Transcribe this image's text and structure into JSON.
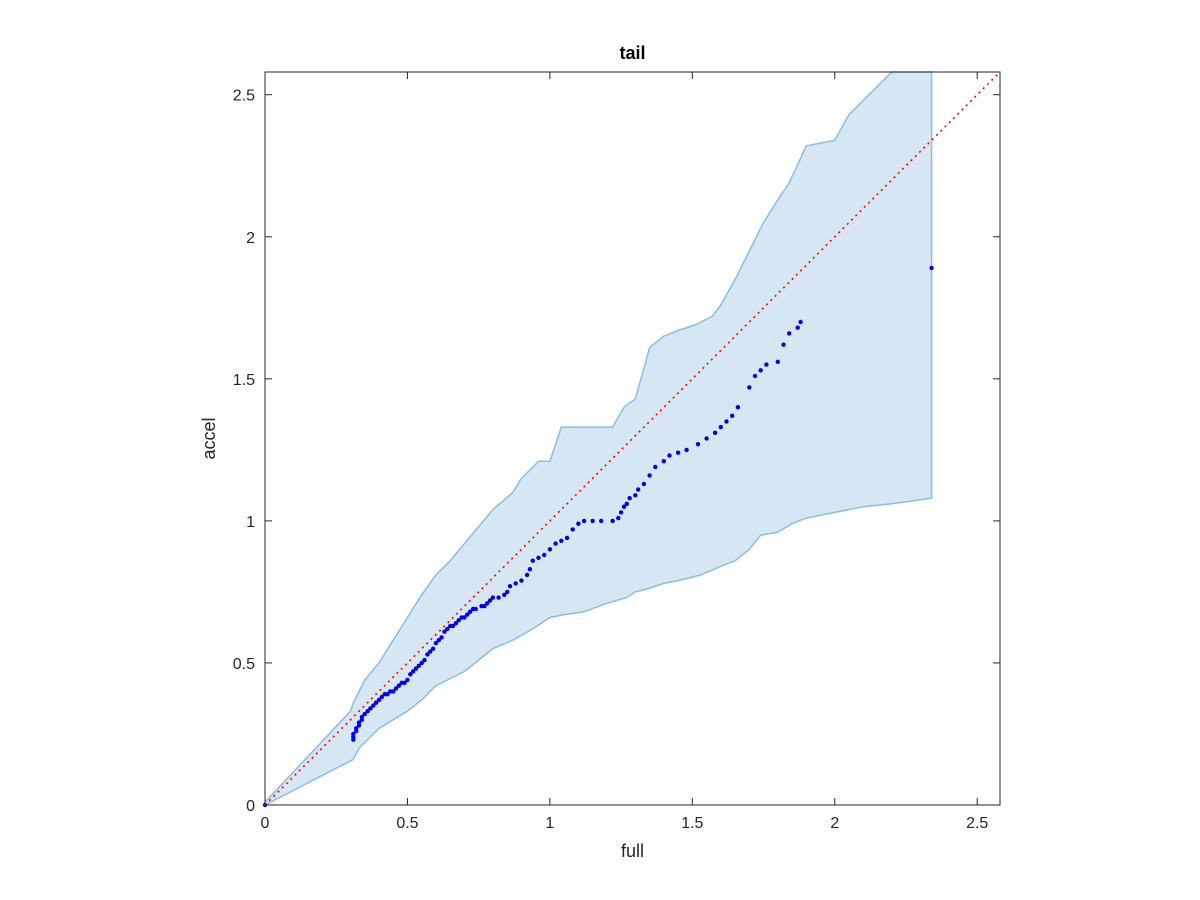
{
  "chart_data": {
    "type": "scatter",
    "title": "tail",
    "xlabel": "full",
    "ylabel": "accel",
    "xlim": [
      0,
      2.58
    ],
    "ylim": [
      0,
      2.58
    ],
    "xticks": [
      0,
      0.5,
      1,
      1.5,
      2,
      2.5
    ],
    "yticks": [
      0,
      0.5,
      1,
      1.5,
      2,
      2.5
    ],
    "xtick_labels": [
      "0",
      "0.5",
      "1",
      "1.5",
      "2",
      "2.5"
    ],
    "ytick_labels": [
      "0",
      "0.5",
      "1",
      "1.5",
      "2",
      "2.5"
    ],
    "grid": false,
    "colors": {
      "points": "#0000ee",
      "band_fill": "#d6e6f3",
      "band_edge": "#8abedf",
      "reference": "#ff0000",
      "axes": "#262626"
    },
    "band_upper": [
      [
        0,
        0.01
      ],
      [
        0.3,
        0.33
      ],
      [
        0.31,
        0.36
      ],
      [
        0.33,
        0.4
      ],
      [
        0.35,
        0.44
      ],
      [
        0.4,
        0.5
      ],
      [
        0.45,
        0.58
      ],
      [
        0.5,
        0.66
      ],
      [
        0.55,
        0.74
      ],
      [
        0.6,
        0.81
      ],
      [
        0.65,
        0.86
      ],
      [
        0.7,
        0.92
      ],
      [
        0.8,
        1.04
      ],
      [
        0.87,
        1.1
      ],
      [
        0.9,
        1.15
      ],
      [
        0.96,
        1.21
      ],
      [
        1.0,
        1.21
      ],
      [
        1.04,
        1.33
      ],
      [
        1.22,
        1.33
      ],
      [
        1.26,
        1.4
      ],
      [
        1.3,
        1.43
      ],
      [
        1.32,
        1.5
      ],
      [
        1.35,
        1.61
      ],
      [
        1.4,
        1.65
      ],
      [
        1.45,
        1.67
      ],
      [
        1.51,
        1.69
      ],
      [
        1.57,
        1.72
      ],
      [
        1.6,
        1.76
      ],
      [
        1.65,
        1.85
      ],
      [
        1.7,
        1.95
      ],
      [
        1.75,
        2.05
      ],
      [
        1.8,
        2.13
      ],
      [
        1.84,
        2.19
      ],
      [
        1.9,
        2.32
      ],
      [
        2.0,
        2.34
      ],
      [
        2.05,
        2.43
      ],
      [
        2.2,
        2.58
      ],
      [
        2.34,
        2.58
      ]
    ],
    "band_lower": [
      [
        0,
        0.0
      ],
      [
        0.31,
        0.16
      ],
      [
        0.33,
        0.2
      ],
      [
        0.35,
        0.22
      ],
      [
        0.4,
        0.27
      ],
      [
        0.5,
        0.33
      ],
      [
        0.55,
        0.37
      ],
      [
        0.6,
        0.42
      ],
      [
        0.7,
        0.47
      ],
      [
        0.8,
        0.55
      ],
      [
        0.87,
        0.58
      ],
      [
        0.94,
        0.62
      ],
      [
        1.0,
        0.66
      ],
      [
        1.05,
        0.67
      ],
      [
        1.12,
        0.68
      ],
      [
        1.2,
        0.71
      ],
      [
        1.27,
        0.73
      ],
      [
        1.3,
        0.75
      ],
      [
        1.34,
        0.76
      ],
      [
        1.4,
        0.78
      ],
      [
        1.45,
        0.79
      ],
      [
        1.53,
        0.81
      ],
      [
        1.6,
        0.84
      ],
      [
        1.65,
        0.86
      ],
      [
        1.7,
        0.9
      ],
      [
        1.74,
        0.95
      ],
      [
        1.8,
        0.96
      ],
      [
        1.85,
        0.99
      ],
      [
        1.9,
        1.01
      ],
      [
        2.0,
        1.03
      ],
      [
        2.1,
        1.05
      ],
      [
        2.2,
        1.06
      ],
      [
        2.34,
        1.08
      ]
    ],
    "points": [
      [
        0,
        0
      ],
      [
        0.31,
        0.23
      ],
      [
        0.31,
        0.24
      ],
      [
        0.31,
        0.25
      ],
      [
        0.32,
        0.26
      ],
      [
        0.32,
        0.27
      ],
      [
        0.33,
        0.28
      ],
      [
        0.33,
        0.29
      ],
      [
        0.34,
        0.3
      ],
      [
        0.34,
        0.31
      ],
      [
        0.35,
        0.32
      ],
      [
        0.36,
        0.33
      ],
      [
        0.37,
        0.34
      ],
      [
        0.38,
        0.35
      ],
      [
        0.39,
        0.36
      ],
      [
        0.4,
        0.37
      ],
      [
        0.41,
        0.38
      ],
      [
        0.42,
        0.39
      ],
      [
        0.43,
        0.39
      ],
      [
        0.44,
        0.4
      ],
      [
        0.45,
        0.4
      ],
      [
        0.46,
        0.41
      ],
      [
        0.47,
        0.42
      ],
      [
        0.48,
        0.43
      ],
      [
        0.49,
        0.43
      ],
      [
        0.5,
        0.44
      ],
      [
        0.51,
        0.46
      ],
      [
        0.52,
        0.47
      ],
      [
        0.53,
        0.48
      ],
      [
        0.54,
        0.49
      ],
      [
        0.55,
        0.5
      ],
      [
        0.56,
        0.51
      ],
      [
        0.57,
        0.53
      ],
      [
        0.58,
        0.54
      ],
      [
        0.59,
        0.55
      ],
      [
        0.6,
        0.57
      ],
      [
        0.61,
        0.58
      ],
      [
        0.62,
        0.59
      ],
      [
        0.63,
        0.61
      ],
      [
        0.64,
        0.62
      ],
      [
        0.65,
        0.63
      ],
      [
        0.66,
        0.63
      ],
      [
        0.67,
        0.64
      ],
      [
        0.68,
        0.65
      ],
      [
        0.69,
        0.66
      ],
      [
        0.7,
        0.66
      ],
      [
        0.71,
        0.67
      ],
      [
        0.72,
        0.68
      ],
      [
        0.73,
        0.69
      ],
      [
        0.74,
        0.69
      ],
      [
        0.76,
        0.7
      ],
      [
        0.77,
        0.7
      ],
      [
        0.78,
        0.71
      ],
      [
        0.79,
        0.72
      ],
      [
        0.8,
        0.73
      ],
      [
        0.82,
        0.73
      ],
      [
        0.84,
        0.74
      ],
      [
        0.85,
        0.75
      ],
      [
        0.86,
        0.77
      ],
      [
        0.88,
        0.78
      ],
      [
        0.9,
        0.79
      ],
      [
        0.92,
        0.81
      ],
      [
        0.93,
        0.83
      ],
      [
        0.94,
        0.86
      ],
      [
        0.96,
        0.87
      ],
      [
        0.98,
        0.88
      ],
      [
        1.0,
        0.9
      ],
      [
        1.02,
        0.92
      ],
      [
        1.04,
        0.93
      ],
      [
        1.06,
        0.94
      ],
      [
        1.08,
        0.97
      ],
      [
        1.1,
        0.99
      ],
      [
        1.12,
        1.0
      ],
      [
        1.15,
        1.0
      ],
      [
        1.18,
        1.0
      ],
      [
        1.22,
        1.0
      ],
      [
        1.24,
        1.01
      ],
      [
        1.25,
        1.03
      ],
      [
        1.26,
        1.05
      ],
      [
        1.27,
        1.06
      ],
      [
        1.28,
        1.08
      ],
      [
        1.3,
        1.09
      ],
      [
        1.31,
        1.11
      ],
      [
        1.33,
        1.13
      ],
      [
        1.35,
        1.16
      ],
      [
        1.37,
        1.19
      ],
      [
        1.4,
        1.21
      ],
      [
        1.42,
        1.23
      ],
      [
        1.45,
        1.24
      ],
      [
        1.48,
        1.25
      ],
      [
        1.52,
        1.27
      ],
      [
        1.55,
        1.29
      ],
      [
        1.58,
        1.31
      ],
      [
        1.6,
        1.33
      ],
      [
        1.62,
        1.35
      ],
      [
        1.64,
        1.37
      ],
      [
        1.66,
        1.4
      ],
      [
        1.7,
        1.47
      ],
      [
        1.72,
        1.51
      ],
      [
        1.74,
        1.53
      ],
      [
        1.76,
        1.55
      ],
      [
        1.8,
        1.56
      ],
      [
        1.82,
        1.62
      ],
      [
        1.84,
        1.66
      ],
      [
        1.87,
        1.68
      ],
      [
        1.88,
        1.7
      ],
      [
        2.34,
        1.89
      ]
    ]
  }
}
